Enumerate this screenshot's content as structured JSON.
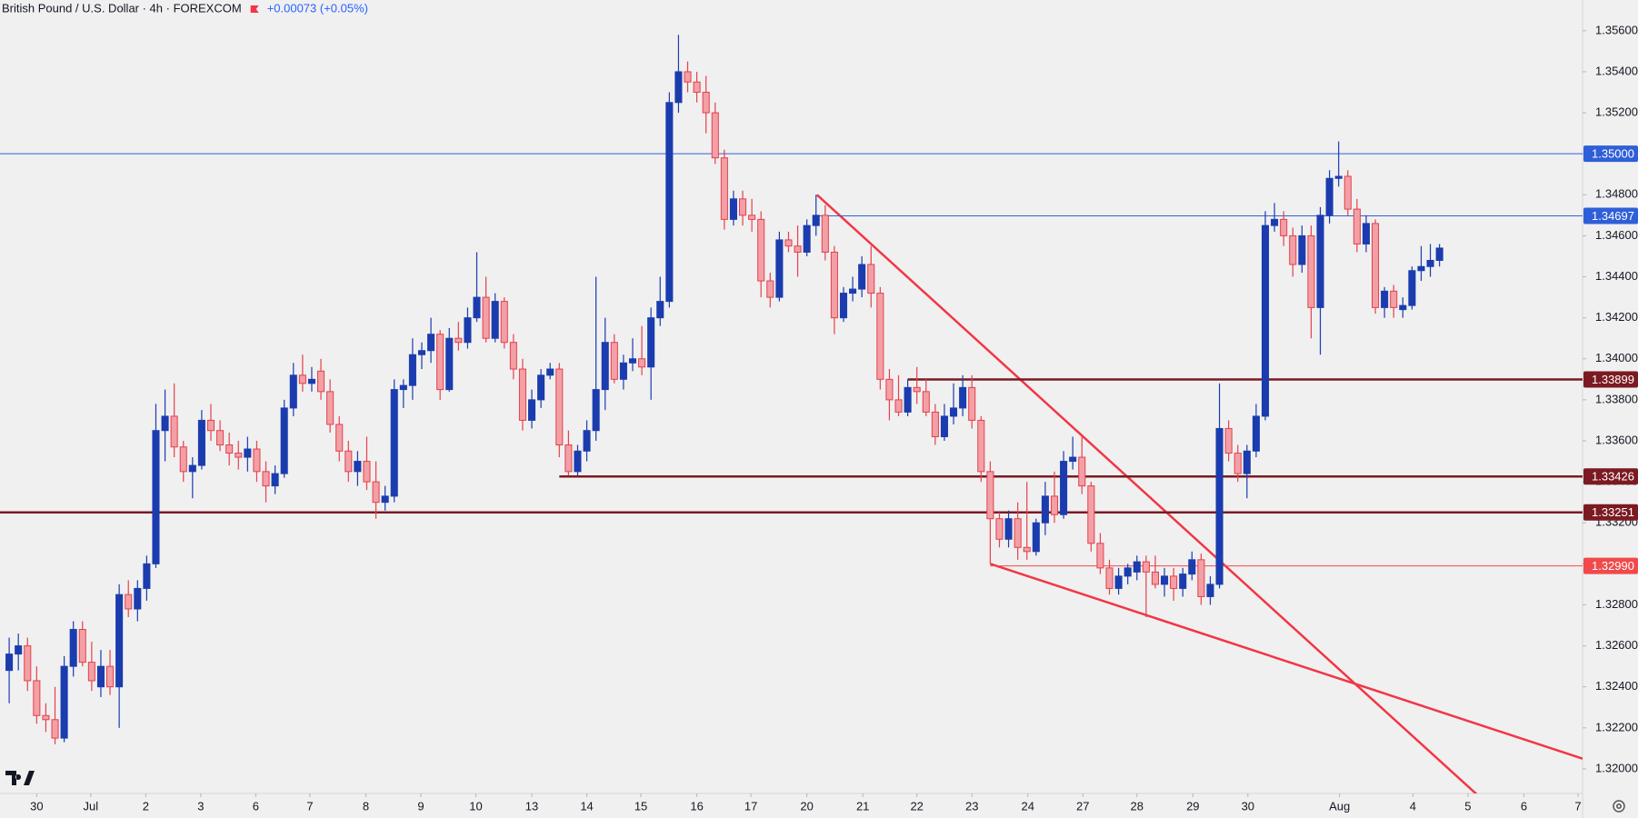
{
  "chart_data": {
    "type": "candlestick",
    "title": "British Pound / U.S. Dollar · 4h · FOREXCOM",
    "change": "+0.00073 (+0.05%)",
    "up_color": "#1a3caf",
    "down_color": "#f2a0a6",
    "down_edge": "#e5404c",
    "xlim": [
      -1,
      171.6
    ],
    "xticks": [
      {
        "value": 3.0,
        "label": "30"
      },
      {
        "value": 8.9,
        "label": "Jul"
      },
      {
        "value": 14.9,
        "label": "2"
      },
      {
        "value": 20.9,
        "label": "3"
      },
      {
        "value": 26.9,
        "label": "6"
      },
      {
        "value": 32.8,
        "label": "7"
      },
      {
        "value": 38.9,
        "label": "8"
      },
      {
        "value": 44.9,
        "label": "9"
      },
      {
        "value": 50.9,
        "label": "10"
      },
      {
        "value": 57.0,
        "label": "13"
      },
      {
        "value": 63.0,
        "label": "14"
      },
      {
        "value": 68.9,
        "label": "15"
      },
      {
        "value": 75.0,
        "label": "16"
      },
      {
        "value": 80.9,
        "label": "17"
      },
      {
        "value": 87.0,
        "label": "20"
      },
      {
        "value": 93.1,
        "label": "21"
      },
      {
        "value": 99.0,
        "label": "22"
      },
      {
        "value": 105.0,
        "label": "23"
      },
      {
        "value": 111.1,
        "label": "24"
      },
      {
        "value": 117.1,
        "label": "27"
      },
      {
        "value": 123.0,
        "label": "28"
      },
      {
        "value": 129.1,
        "label": "29"
      },
      {
        "value": 135.1,
        "label": "30"
      },
      {
        "value": 145.1,
        "label": "Aug"
      },
      {
        "value": 153.1,
        "label": "4"
      },
      {
        "value": 159.1,
        "label": "5"
      },
      {
        "value": 165.2,
        "label": "6"
      },
      {
        "value": 171.1,
        "label": "7"
      }
    ],
    "ylim": [
      1.3188,
      1.3575
    ],
    "yticks": [
      {
        "value": 1.32,
        "label": "1.32000"
      },
      {
        "value": 1.322,
        "label": "1.32200"
      },
      {
        "value": 1.324,
        "label": "1.32400"
      },
      {
        "value": 1.326,
        "label": "1.32600"
      },
      {
        "value": 1.328,
        "label": "1.32800"
      },
      {
        "value": 1.33,
        "label": "1.33000"
      },
      {
        "value": 1.332,
        "label": "1.33200"
      },
      {
        "value": 1.334,
        "label": "1.33400"
      },
      {
        "value": 1.336,
        "label": "1.33600"
      },
      {
        "value": 1.338,
        "label": "1.33800"
      },
      {
        "value": 1.34,
        "label": "1.34000"
      },
      {
        "value": 1.342,
        "label": "1.34200"
      },
      {
        "value": 1.344,
        "label": "1.34400"
      },
      {
        "value": 1.346,
        "label": "1.34600"
      },
      {
        "value": 1.348,
        "label": "1.34800"
      },
      {
        "value": 1.35,
        "label": "1.35000"
      },
      {
        "value": 1.352,
        "label": "1.35200"
      },
      {
        "value": 1.354,
        "label": "1.35400"
      },
      {
        "value": 1.356,
        "label": "1.35600"
      }
    ],
    "levels": [
      {
        "value": 1.35,
        "label": "1.35000",
        "color": "#2f5fd8",
        "width": 1
      },
      {
        "value": 1.34697,
        "label": "1.34697",
        "color": "#2f5fd8",
        "width": 1,
        "from": 88
      },
      {
        "value": 1.33899,
        "label": "1.33899",
        "color": "#7b1a22",
        "width": 2.5,
        "from": 98
      },
      {
        "value": 1.33426,
        "label": "1.33426",
        "color": "#7b1a22",
        "width": 2.5,
        "from": 60
      },
      {
        "value": 1.33251,
        "label": "1.33251",
        "color": "#7b1a22",
        "width": 2.5
      },
      {
        "value": 1.3299,
        "label": "1.32990",
        "color": "#f04a4a",
        "width": 1,
        "from": 107
      }
    ],
    "trendlines": [
      {
        "x": [
          88.1,
          160.2
        ],
        "y": [
          1.348,
          1.3187
        ],
        "color": "#f23645"
      },
      {
        "x": [
          107,
          171.6
        ],
        "y": [
          1.33,
          1.3205
        ],
        "color": "#f23645"
      }
    ],
    "ohlc": [
      [
        1.3248,
        1.3264,
        1.3232,
        1.3256
      ],
      [
        1.3256,
        1.3266,
        1.3248,
        1.326
      ],
      [
        1.326,
        1.3264,
        1.3238,
        1.3243
      ],
      [
        1.3243,
        1.325,
        1.3222,
        1.3226
      ],
      [
        1.3226,
        1.3232,
        1.3218,
        1.3224
      ],
      [
        1.3224,
        1.324,
        1.3212,
        1.3215
      ],
      [
        1.3215,
        1.3255,
        1.3213,
        1.325
      ],
      [
        1.325,
        1.3272,
        1.3245,
        1.3268
      ],
      [
        1.3268,
        1.3272,
        1.325,
        1.3252
      ],
      [
        1.3252,
        1.3262,
        1.3238,
        1.3243
      ],
      [
        1.324,
        1.3258,
        1.3235,
        1.325
      ],
      [
        1.325,
        1.3258,
        1.3236,
        1.324
      ],
      [
        1.324,
        1.329,
        1.322,
        1.3285
      ],
      [
        1.3285,
        1.3292,
        1.3274,
        1.3278
      ],
      [
        1.3278,
        1.3292,
        1.3272,
        1.3288
      ],
      [
        1.3288,
        1.3304,
        1.3282,
        1.33
      ],
      [
        1.33,
        1.3378,
        1.3298,
        1.3365
      ],
      [
        1.3365,
        1.3385,
        1.335,
        1.3372
      ],
      [
        1.3372,
        1.3388,
        1.3352,
        1.3357
      ],
      [
        1.3357,
        1.336,
        1.334,
        1.3345
      ],
      [
        1.3345,
        1.3352,
        1.3332,
        1.3348
      ],
      [
        1.3348,
        1.3375,
        1.3346,
        1.337
      ],
      [
        1.337,
        1.3378,
        1.336,
        1.3365
      ],
      [
        1.3365,
        1.337,
        1.3355,
        1.3358
      ],
      [
        1.3358,
        1.3364,
        1.3348,
        1.3354
      ],
      [
        1.3354,
        1.336,
        1.3346,
        1.3352
      ],
      [
        1.3352,
        1.3362,
        1.3345,
        1.3356
      ],
      [
        1.3356,
        1.336,
        1.334,
        1.3345
      ],
      [
        1.3345,
        1.335,
        1.333,
        1.3338
      ],
      [
        1.3338,
        1.3348,
        1.3334,
        1.3344
      ],
      [
        1.3344,
        1.338,
        1.3342,
        1.3376
      ],
      [
        1.3376,
        1.3398,
        1.3372,
        1.3392
      ],
      [
        1.3392,
        1.3402,
        1.3384,
        1.3388
      ],
      [
        1.3388,
        1.3396,
        1.3384,
        1.339
      ],
      [
        1.3394,
        1.34,
        1.338,
        1.3384
      ],
      [
        1.3384,
        1.339,
        1.3364,
        1.3368
      ],
      [
        1.3368,
        1.3372,
        1.335,
        1.3355
      ],
      [
        1.3355,
        1.336,
        1.334,
        1.3345
      ],
      [
        1.3345,
        1.3355,
        1.3338,
        1.335
      ],
      [
        1.335,
        1.3362,
        1.3336,
        1.334
      ],
      [
        1.334,
        1.335,
        1.3322,
        1.333
      ],
      [
        1.333,
        1.3338,
        1.3326,
        1.3333
      ],
      [
        1.3333,
        1.339,
        1.333,
        1.3385
      ],
      [
        1.3385,
        1.339,
        1.3376,
        1.3387
      ],
      [
        1.3387,
        1.341,
        1.338,
        1.3402
      ],
      [
        1.3402,
        1.3408,
        1.3395,
        1.3404
      ],
      [
        1.3404,
        1.342,
        1.3398,
        1.3412
      ],
      [
        1.3412,
        1.3414,
        1.338,
        1.3385
      ],
      [
        1.3385,
        1.3415,
        1.3384,
        1.341
      ],
      [
        1.341,
        1.3418,
        1.3404,
        1.3408
      ],
      [
        1.3408,
        1.3425,
        1.3405,
        1.342
      ],
      [
        1.342,
        1.3452,
        1.3418,
        1.343
      ],
      [
        1.343,
        1.344,
        1.3408,
        1.341
      ],
      [
        1.341,
        1.3432,
        1.3408,
        1.3428
      ],
      [
        1.3428,
        1.343,
        1.3405,
        1.3408
      ],
      [
        1.3408,
        1.3412,
        1.339,
        1.3395
      ],
      [
        1.3395,
        1.34,
        1.3365,
        1.337
      ],
      [
        1.337,
        1.3385,
        1.3366,
        1.338
      ],
      [
        1.338,
        1.3395,
        1.3376,
        1.3392
      ],
      [
        1.3392,
        1.3398,
        1.339,
        1.3395
      ],
      [
        1.3395,
        1.3398,
        1.3352,
        1.3358
      ],
      [
        1.3358,
        1.3365,
        1.3343,
        1.3345
      ],
      [
        1.3345,
        1.3358,
        1.3343,
        1.3355
      ],
      [
        1.3355,
        1.337,
        1.335,
        1.3365
      ],
      [
        1.3365,
        1.344,
        1.336,
        1.3385
      ],
      [
        1.3385,
        1.342,
        1.3375,
        1.3408
      ],
      [
        1.3408,
        1.3412,
        1.3388,
        1.339
      ],
      [
        1.339,
        1.3402,
        1.3385,
        1.3398
      ],
      [
        1.3398,
        1.341,
        1.3394,
        1.34
      ],
      [
        1.34,
        1.3416,
        1.3392,
        1.3396
      ],
      [
        1.3396,
        1.3425,
        1.338,
        1.342
      ],
      [
        1.342,
        1.344,
        1.3416,
        1.3428
      ],
      [
        1.3428,
        1.353,
        1.3425,
        1.3525
      ],
      [
        1.3525,
        1.3558,
        1.352,
        1.354
      ],
      [
        1.354,
        1.3545,
        1.353,
        1.3535
      ],
      [
        1.3535,
        1.354,
        1.3525,
        1.353
      ],
      [
        1.353,
        1.3538,
        1.351,
        1.352
      ],
      [
        1.352,
        1.3525,
        1.3495,
        1.3498
      ],
      [
        1.3498,
        1.3502,
        1.3463,
        1.3468
      ],
      [
        1.3468,
        1.3482,
        1.3465,
        1.3478
      ],
      [
        1.3478,
        1.3482,
        1.3465,
        1.347
      ],
      [
        1.347,
        1.3478,
        1.3462,
        1.3468
      ],
      [
        1.3468,
        1.3472,
        1.343,
        1.3438
      ],
      [
        1.3438,
        1.3442,
        1.3425,
        1.343
      ],
      [
        1.343,
        1.3462,
        1.3428,
        1.3458
      ],
      [
        1.3458,
        1.3462,
        1.3452,
        1.3455
      ],
      [
        1.3455,
        1.3465,
        1.344,
        1.3452
      ],
      [
        1.3452,
        1.3468,
        1.345,
        1.3465
      ],
      [
        1.3465,
        1.348,
        1.346,
        1.347
      ],
      [
        1.347,
        1.3475,
        1.3448,
        1.3452
      ],
      [
        1.3452,
        1.3455,
        1.3412,
        1.342
      ],
      [
        1.342,
        1.3435,
        1.3418,
        1.3432
      ],
      [
        1.3432,
        1.344,
        1.3428,
        1.3434
      ],
      [
        1.3434,
        1.345,
        1.343,
        1.3446
      ],
      [
        1.3446,
        1.3455,
        1.3425,
        1.3432
      ],
      [
        1.3432,
        1.3435,
        1.3385,
        1.339
      ],
      [
        1.339,
        1.3395,
        1.337,
        1.338
      ],
      [
        1.338,
        1.3392,
        1.3372,
        1.3374
      ],
      [
        1.3374,
        1.339,
        1.3372,
        1.3386
      ],
      [
        1.3386,
        1.3396,
        1.3378,
        1.3384
      ],
      [
        1.3384,
        1.339,
        1.3372,
        1.3374
      ],
      [
        1.3374,
        1.3378,
        1.3358,
        1.3362
      ],
      [
        1.3362,
        1.3378,
        1.336,
        1.3372
      ],
      [
        1.3372,
        1.3388,
        1.3368,
        1.3376
      ],
      [
        1.3376,
        1.3392,
        1.3372,
        1.3386
      ],
      [
        1.3386,
        1.3392,
        1.3366,
        1.337
      ],
      [
        1.337,
        1.3372,
        1.334,
        1.3345
      ],
      [
        1.3345,
        1.335,
        1.33,
        1.3322
      ],
      [
        1.3322,
        1.3325,
        1.3308,
        1.3312
      ],
      [
        1.3312,
        1.3326,
        1.3308,
        1.3322
      ],
      [
        1.3322,
        1.333,
        1.3302,
        1.3308
      ],
      [
        1.3308,
        1.334,
        1.3302,
        1.3306
      ],
      [
        1.3306,
        1.3322,
        1.3304,
        1.332
      ],
      [
        1.332,
        1.334,
        1.3314,
        1.3333
      ],
      [
        1.3333,
        1.3345,
        1.332,
        1.3324
      ],
      [
        1.3324,
        1.3355,
        1.3322,
        1.335
      ],
      [
        1.335,
        1.3362,
        1.3346,
        1.3352
      ],
      [
        1.3352,
        1.3362,
        1.3334,
        1.3338
      ],
      [
        1.3338,
        1.334,
        1.3306,
        1.331
      ],
      [
        1.331,
        1.3315,
        1.3295,
        1.3298
      ],
      [
        1.3298,
        1.3302,
        1.3285,
        1.3288
      ],
      [
        1.3288,
        1.3298,
        1.3285,
        1.3294
      ],
      [
        1.3294,
        1.33,
        1.329,
        1.3298
      ],
      [
        1.3296,
        1.3304,
        1.3292,
        1.3301
      ],
      [
        1.3301,
        1.3304,
        1.3274,
        1.3296
      ],
      [
        1.3296,
        1.3304,
        1.3288,
        1.329
      ],
      [
        1.329,
        1.3298,
        1.3284,
        1.3294
      ],
      [
        1.3294,
        1.3298,
        1.3282,
        1.3288
      ],
      [
        1.3288,
        1.3298,
        1.3284,
        1.3295
      ],
      [
        1.3295,
        1.3306,
        1.3292,
        1.3302
      ],
      [
        1.3302,
        1.3305,
        1.328,
        1.3284
      ],
      [
        1.3284,
        1.3294,
        1.328,
        1.329
      ],
      [
        1.329,
        1.3388,
        1.3288,
        1.3366
      ],
      [
        1.3366,
        1.337,
        1.335,
        1.3354
      ],
      [
        1.3354,
        1.3358,
        1.334,
        1.3344
      ],
      [
        1.3344,
        1.3358,
        1.3332,
        1.3355
      ],
      [
        1.3355,
        1.3378,
        1.3352,
        1.3372
      ],
      [
        1.3372,
        1.3472,
        1.337,
        1.3465
      ],
      [
        1.3465,
        1.3476,
        1.3462,
        1.3468
      ],
      [
        1.3468,
        1.3472,
        1.3455,
        1.346
      ],
      [
        1.346,
        1.3464,
        1.344,
        1.3446
      ],
      [
        1.3446,
        1.3465,
        1.3442,
        1.346
      ],
      [
        1.346,
        1.3465,
        1.341,
        1.3425
      ],
      [
        1.3425,
        1.3474,
        1.3402,
        1.347
      ],
      [
        1.347,
        1.3492,
        1.3466,
        1.3488
      ],
      [
        1.3488,
        1.3506,
        1.3484,
        1.3489
      ],
      [
        1.3489,
        1.3492,
        1.347,
        1.3473
      ],
      [
        1.3473,
        1.3478,
        1.3452,
        1.3456
      ],
      [
        1.3456,
        1.347,
        1.3452,
        1.3466
      ],
      [
        1.3466,
        1.3468,
        1.3422,
        1.3425
      ],
      [
        1.3425,
        1.3435,
        1.342,
        1.3433
      ],
      [
        1.3433,
        1.3436,
        1.342,
        1.3425
      ],
      [
        1.3424,
        1.343,
        1.342,
        1.3426
      ],
      [
        1.3426,
        1.3445,
        1.3424,
        1.3443
      ],
      [
        1.3443,
        1.3455,
        1.3438,
        1.3445
      ],
      [
        1.3445,
        1.3456,
        1.344,
        1.3448
      ],
      [
        1.3448,
        1.3456,
        1.3445,
        1.3454
      ]
    ]
  }
}
